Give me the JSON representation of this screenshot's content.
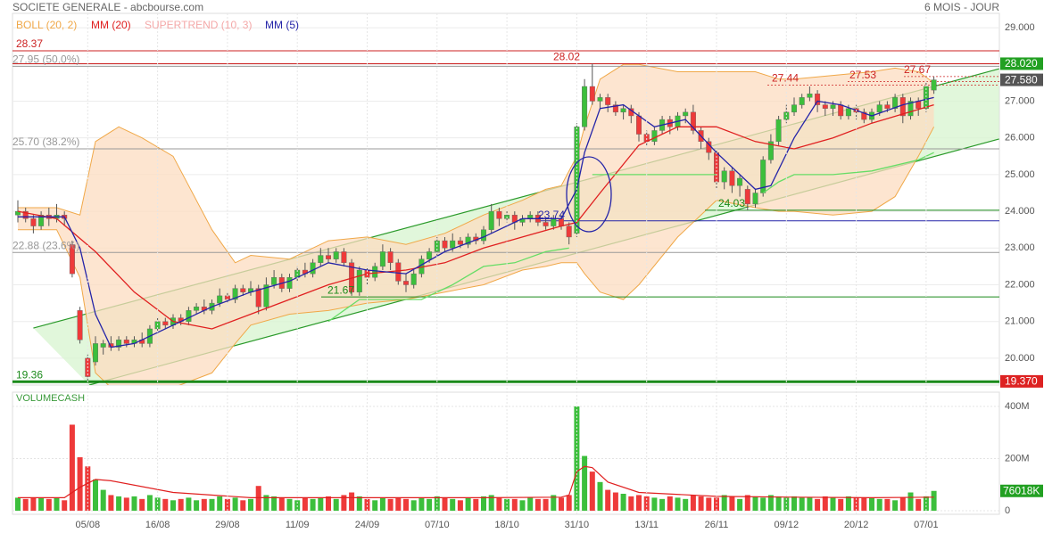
{
  "chart_data": [
    {
      "type": "candlestick",
      "title": "SOCIETE GENERALE - abcbourse.com",
      "period": "6 MOIS - JOUR",
      "categories": [
        null,
        null,
        null,
        null,
        null,
        null,
        null,
        null,
        null,
        "05/08",
        null,
        null,
        null,
        null,
        null,
        null,
        null,
        null,
        "16/08",
        null,
        null,
        null,
        null,
        null,
        null,
        null,
        null,
        "29/08",
        null,
        null,
        null,
        null,
        null,
        null,
        null,
        null,
        "11/09",
        null,
        null,
        null,
        null,
        null,
        null,
        null,
        null,
        "24/09",
        null,
        null,
        null,
        null,
        null,
        null,
        null,
        null,
        "07/10",
        null,
        null,
        null,
        null,
        null,
        null,
        null,
        null,
        "18/10",
        null,
        null,
        null,
        null,
        null,
        null,
        null,
        null,
        "31/10",
        null,
        null,
        null,
        null,
        null,
        null,
        null,
        null,
        "13/11",
        null,
        null,
        null,
        null,
        null,
        null,
        null,
        null,
        "26/11",
        null,
        null,
        null,
        null,
        null,
        null,
        null,
        null,
        "09/12",
        null,
        null,
        null,
        null,
        null,
        null,
        null,
        null,
        "20/12",
        null,
        null,
        null,
        null,
        null,
        null,
        null,
        null,
        "07/01",
        null
      ],
      "open": [
        23.9,
        24.0,
        23.8,
        23.6,
        23.9,
        23.8,
        23.9,
        23.1,
        21.3,
        20.0,
        19.9,
        20.3,
        20.4,
        20.3,
        20.5,
        20.4,
        20.5,
        20.4,
        20.8,
        21.0,
        20.9,
        21.1,
        21.0,
        21.3,
        21.4,
        21.3,
        21.5,
        21.7,
        21.6,
        21.9,
        21.8,
        21.9,
        21.4,
        22.0,
        22.2,
        21.9,
        22.2,
        22.4,
        22.3,
        22.6,
        22.8,
        22.7,
        22.9,
        22.6,
        21.8,
        22.4,
        22.2,
        22.5,
        22.9,
        22.6,
        22.1,
        22.0,
        22.3,
        22.7,
        22.9,
        23.2,
        23.0,
        23.2,
        23.1,
        23.3,
        23.2,
        23.5,
        24.0,
        23.8,
        23.9,
        23.7,
        23.8,
        23.9,
        23.7,
        23.6,
        23.8,
        23.6,
        23.4,
        26.3,
        27.4,
        27.0,
        27.1,
        26.9,
        26.7,
        26.8,
        26.6,
        26.1,
        25.9,
        26.2,
        26.5,
        26.3,
        26.6,
        26.7,
        26.2,
        25.9,
        25.6,
        24.8,
        25.1,
        24.7,
        24.6,
        24.2,
        24.5,
        25.4,
        25.9,
        26.5,
        26.7,
        26.9,
        27.1,
        27.2,
        26.9,
        26.8,
        26.9,
        26.6,
        26.8,
        26.7,
        26.5,
        26.7,
        26.9,
        26.8,
        27.1,
        26.6,
        27.0,
        26.8,
        27.3
      ],
      "high": [
        24.3,
        24.1,
        23.9,
        24.0,
        24.1,
        24.2,
        24.0,
        23.2,
        21.4,
        20.1,
        20.6,
        20.5,
        20.6,
        20.6,
        20.6,
        20.6,
        20.7,
        20.9,
        21.1,
        21.1,
        21.2,
        21.2,
        21.4,
        21.5,
        21.6,
        21.6,
        21.9,
        21.8,
        22.0,
        22.0,
        22.1,
        22.0,
        22.2,
        22.4,
        22.3,
        22.3,
        22.5,
        22.6,
        22.7,
        23.0,
        23.0,
        23.0,
        23.0,
        22.7,
        22.5,
        22.5,
        22.6,
        23.1,
        23.0,
        22.7,
        22.3,
        22.4,
        22.8,
        23.0,
        23.3,
        23.3,
        23.4,
        23.3,
        23.4,
        23.4,
        23.6,
        24.2,
        24.1,
        24.0,
        24.0,
        23.9,
        24.0,
        24.0,
        23.8,
        23.9,
        23.9,
        23.7,
        26.4,
        27.6,
        28.02,
        27.2,
        27.2,
        27.0,
        26.9,
        26.9,
        26.7,
        26.2,
        26.3,
        26.6,
        26.6,
        26.7,
        26.8,
        26.9,
        26.3,
        26.0,
        25.7,
        25.2,
        25.2,
        25.0,
        24.7,
        24.6,
        25.5,
        26.1,
        26.6,
        26.9,
        27.1,
        27.2,
        27.4,
        27.3,
        27.0,
        27.0,
        27.0,
        26.9,
        26.9,
        26.8,
        26.8,
        27.0,
        27.0,
        27.2,
        27.2,
        27.1,
        27.1,
        27.5,
        27.67
      ],
      "low": [
        23.7,
        23.7,
        23.4,
        23.5,
        23.6,
        23.7,
        23.6,
        22.2,
        20.4,
        19.4,
        19.8,
        20.1,
        20.2,
        20.2,
        20.3,
        20.3,
        20.3,
        20.3,
        20.7,
        20.8,
        20.8,
        20.9,
        20.9,
        21.2,
        21.2,
        21.2,
        21.4,
        21.5,
        21.5,
        21.7,
        21.7,
        21.2,
        21.3,
        21.9,
        21.8,
        21.8,
        22.1,
        22.2,
        22.2,
        22.5,
        22.6,
        22.6,
        22.5,
        21.7,
        21.7,
        22.0,
        22.1,
        22.4,
        22.4,
        22.0,
        21.8,
        21.9,
        22.2,
        22.6,
        22.8,
        22.9,
        22.9,
        23.0,
        23.0,
        23.1,
        23.1,
        23.4,
        23.6,
        23.7,
        23.5,
        23.6,
        23.7,
        23.6,
        23.5,
        23.5,
        23.5,
        23.1,
        23.3,
        26.2,
        26.9,
        26.8,
        26.7,
        26.6,
        26.5,
        26.4,
        25.9,
        25.8,
        25.8,
        26.1,
        26.1,
        26.2,
        26.4,
        26.1,
        25.7,
        25.4,
        24.6,
        24.6,
        24.5,
        24.4,
        24.03,
        24.1,
        24.4,
        25.3,
        25.8,
        26.4,
        26.6,
        26.8,
        27.0,
        26.7,
        26.6,
        26.6,
        26.5,
        26.5,
        26.5,
        26.4,
        26.4,
        26.6,
        26.7,
        26.7,
        26.4,
        26.5,
        26.6,
        26.7,
        27.2
      ],
      "close": [
        24.0,
        23.8,
        23.6,
        23.9,
        23.8,
        23.9,
        23.8,
        22.3,
        20.5,
        19.5,
        20.4,
        20.4,
        20.3,
        20.5,
        20.4,
        20.5,
        20.4,
        20.8,
        21.0,
        20.9,
        21.1,
        21.0,
        21.3,
        21.4,
        21.3,
        21.5,
        21.7,
        21.6,
        21.9,
        21.8,
        21.9,
        21.4,
        22.0,
        22.2,
        21.9,
        22.2,
        22.4,
        22.3,
        22.6,
        22.8,
        22.7,
        22.9,
        22.6,
        21.8,
        22.4,
        22.2,
        22.5,
        22.9,
        22.6,
        22.1,
        22.0,
        22.3,
        22.7,
        22.9,
        23.2,
        23.0,
        23.2,
        23.1,
        23.3,
        23.2,
        23.5,
        24.0,
        23.8,
        23.9,
        23.7,
        23.8,
        23.9,
        23.7,
        23.6,
        23.8,
        23.6,
        23.3,
        26.3,
        27.4,
        27.0,
        27.1,
        26.9,
        26.7,
        26.8,
        26.6,
        26.1,
        25.9,
        26.2,
        26.5,
        26.3,
        26.6,
        26.7,
        26.2,
        25.9,
        25.6,
        24.8,
        25.1,
        24.7,
        24.9,
        24.2,
        24.5,
        25.4,
        25.9,
        26.5,
        26.7,
        26.9,
        27.1,
        27.2,
        26.9,
        26.8,
        26.9,
        26.6,
        26.8,
        26.7,
        26.5,
        26.7,
        26.9,
        26.8,
        27.1,
        26.6,
        27.0,
        26.8,
        27.4,
        27.58
      ],
      "up_color": "#3cbf3c",
      "down_color": "#ee3a3a",
      "ylim": [
        19.27,
        29.39
      ],
      "yticks": [
        {
          "value": 20,
          "label": "20.000"
        },
        {
          "value": 21,
          "label": "21.000"
        },
        {
          "value": 22,
          "label": "22.000"
        },
        {
          "value": 23,
          "label": "23.000"
        },
        {
          "value": 24,
          "label": "24.000"
        },
        {
          "value": 25,
          "label": "25.000"
        },
        {
          "value": 26,
          "label": "26.000"
        },
        {
          "value": 27,
          "label": "27.000"
        },
        {
          "value": 28,
          "label": "28.000"
        },
        {
          "value": 29,
          "label": "29.000"
        }
      ],
      "grid": true,
      "series": [
        {
          "name": "BOLL (20, 2)",
          "color": "#f0a848",
          "fill": "#fcdcc0",
          "x": [
            0,
            5,
            8,
            10,
            13,
            16,
            20,
            25,
            28,
            30,
            35,
            40,
            45,
            50,
            55,
            60,
            65,
            68,
            70,
            72,
            73,
            75,
            78,
            80,
            85,
            90,
            95,
            98,
            100,
            105,
            110,
            113,
            116,
            118
          ],
          "upper": [
            24.1,
            24.1,
            23.9,
            25.9,
            26.3,
            26.0,
            25.5,
            23.5,
            22.6,
            22.8,
            22.7,
            23.2,
            23.3,
            23.1,
            23.4,
            23.9,
            24.3,
            24.6,
            24.7,
            25.5,
            26.3,
            27.6,
            28.0,
            28.0,
            27.8,
            27.8,
            27.8,
            27.6,
            27.6,
            27.7,
            27.8,
            27.9,
            27.8,
            27.5
          ],
          "lower": [
            23.5,
            23.5,
            22.2,
            19.6,
            19.0,
            19.0,
            19.2,
            19.6,
            20.4,
            20.9,
            21.2,
            21.3,
            21.5,
            21.6,
            21.8,
            22.0,
            22.4,
            22.5,
            22.6,
            22.6,
            22.3,
            21.8,
            21.6,
            22.0,
            23.3,
            24.3,
            24.1,
            24.0,
            24.0,
            23.9,
            24.0,
            24.4,
            25.5,
            26.3
          ]
        },
        {
          "name": "MM (20)",
          "color": "#e02020",
          "x": [
            0,
            5,
            10,
            15,
            20,
            25,
            30,
            35,
            40,
            45,
            50,
            55,
            60,
            65,
            70,
            72,
            75,
            80,
            85,
            90,
            95,
            100,
            105,
            110,
            118
          ],
          "values": [
            24.0,
            23.8,
            22.9,
            21.8,
            21.0,
            20.8,
            21.2,
            21.6,
            22.0,
            22.3,
            22.4,
            22.6,
            23.0,
            23.3,
            23.6,
            23.7,
            24.5,
            25.8,
            26.3,
            26.3,
            25.9,
            25.7,
            26.0,
            26.4,
            26.9
          ]
        },
        {
          "name": "SUPERTREND (10, 3)",
          "color": "#f4a8a8",
          "line_color": "#66dd66",
          "x": [
            40,
            44,
            48,
            52,
            56,
            60,
            64,
            68,
            71,
            72,
            74,
            78,
            84,
            90,
            91,
            96,
            98,
            100,
            105,
            110,
            116,
            118
          ],
          "values": [
            21.0,
            21.6,
            21.6,
            21.6,
            22.0,
            22.5,
            22.6,
            22.9,
            23.0,
            null,
            25.0,
            25.0,
            25.0,
            25.0,
            null,
            24.5,
            24.8,
            25.0,
            25.0,
            25.1,
            25.4,
            25.6
          ]
        },
        {
          "name": "MM (5)",
          "color": "#2424a8",
          "x": [
            0,
            6,
            8,
            10,
            12,
            15,
            20,
            25,
            30,
            35,
            40,
            45,
            50,
            55,
            60,
            65,
            70,
            72,
            73,
            75,
            78,
            82,
            86,
            90,
            93,
            95,
            97,
            100,
            103,
            106,
            110,
            114,
            118
          ],
          "values": [
            23.85,
            23.85,
            23.0,
            21.2,
            20.3,
            20.4,
            20.9,
            21.4,
            21.8,
            22.1,
            22.6,
            22.4,
            22.3,
            22.9,
            23.3,
            23.8,
            23.8,
            24.6,
            25.6,
            26.8,
            26.9,
            26.3,
            26.5,
            25.6,
            25.0,
            24.6,
            24.7,
            26.0,
            27.0,
            26.9,
            26.6,
            26.9,
            27.1
          ]
        }
      ],
      "channel": {
        "color": "#2a9a2a",
        "fill": "#d9f5d2",
        "lines": [
          {
            "x": [
              2,
              126.4
            ],
            "values": [
              20.82,
              27.88
            ]
          },
          {
            "x": [
              9.2,
              126.4
            ],
            "values": [
              19.27,
              25.97
            ]
          }
        ]
      },
      "levels": [
        {
          "value": 28.37,
          "color": "#cc2222"
        },
        {
          "value": 28.02,
          "color": "#cc2222"
        },
        {
          "value": 27.95,
          "label": "27.95 (50.0%)",
          "color": "#999999"
        },
        {
          "value": 25.7,
          "label": "25.70 (38.2%)",
          "color": "#999999"
        },
        {
          "value": 22.88,
          "label": "22.88 (23.6%)",
          "color": "#999999"
        },
        {
          "value": 19.36,
          "color": "#1a8a1a"
        },
        {
          "value": 24.03,
          "color": "#1a8a1a"
        },
        {
          "value": 21.67,
          "color": "#1a8a1a"
        },
        {
          "value": 23.74,
          "color": "#2424a8"
        },
        {
          "value": 27.44,
          "color": "#cc2222"
        },
        {
          "value": 27.53,
          "color": "#cc2222"
        },
        {
          "value": 27.67,
          "color": "#cc2222"
        }
      ],
      "tags": [
        {
          "value": 28.02,
          "label": "28.020",
          "color": "#22a022"
        },
        {
          "value": 27.58,
          "label": "27.580",
          "color": "#555555"
        },
        {
          "value": 19.37,
          "label": "19.370",
          "color": "#dd2222"
        }
      ]
    },
    {
      "type": "bar",
      "title": "VOLUMECASH",
      "values": [
        50,
        45,
        50,
        48,
        45,
        50,
        40,
        330,
        205,
        170,
        120,
        80,
        60,
        55,
        50,
        55,
        45,
        60,
        50,
        45,
        40,
        45,
        50,
        40,
        45,
        45,
        55,
        45,
        50,
        40,
        45,
        95,
        60,
        55,
        50,
        45,
        40,
        50,
        45,
        50,
        55,
        45,
        60,
        70,
        55,
        45,
        40,
        50,
        45,
        50,
        45,
        40,
        50,
        45,
        55,
        50,
        45,
        40,
        50,
        45,
        55,
        60,
        50,
        45,
        45,
        40,
        50,
        45,
        45,
        60,
        50,
        60,
        400,
        210,
        150,
        110,
        80,
        70,
        65,
        55,
        60,
        55,
        50,
        45,
        55,
        50,
        45,
        60,
        55,
        50,
        50,
        60,
        55,
        45,
        60,
        55,
        50,
        60,
        55,
        50,
        55,
        50,
        50,
        45,
        55,
        50,
        45,
        55,
        50,
        50,
        50,
        45,
        45,
        40,
        50,
        70,
        45,
        55,
        76.018
      ],
      "ylim": [
        -13.7,
        454.7
      ],
      "yticks": [
        0,
        {
          "value": 200,
          "label": "200M"
        },
        {
          "value": 400,
          "label": "400M"
        }
      ],
      "average": {
        "color": "#e02020",
        "x": [
          0,
          6,
          8,
          10,
          12,
          20,
          30,
          40,
          50,
          60,
          70,
          71,
          72,
          73,
          74,
          76,
          80,
          90,
          100,
          110,
          118
        ],
        "values": [
          50,
          50,
          90,
          120,
          115,
          70,
          50,
          50,
          50,
          50,
          52,
          60,
          150,
          170,
          165,
          110,
          70,
          55,
          52,
          50,
          52
        ]
      },
      "tag": {
        "value": 76.018,
        "label": "76018K",
        "color": "#22a022"
      }
    }
  ]
}
